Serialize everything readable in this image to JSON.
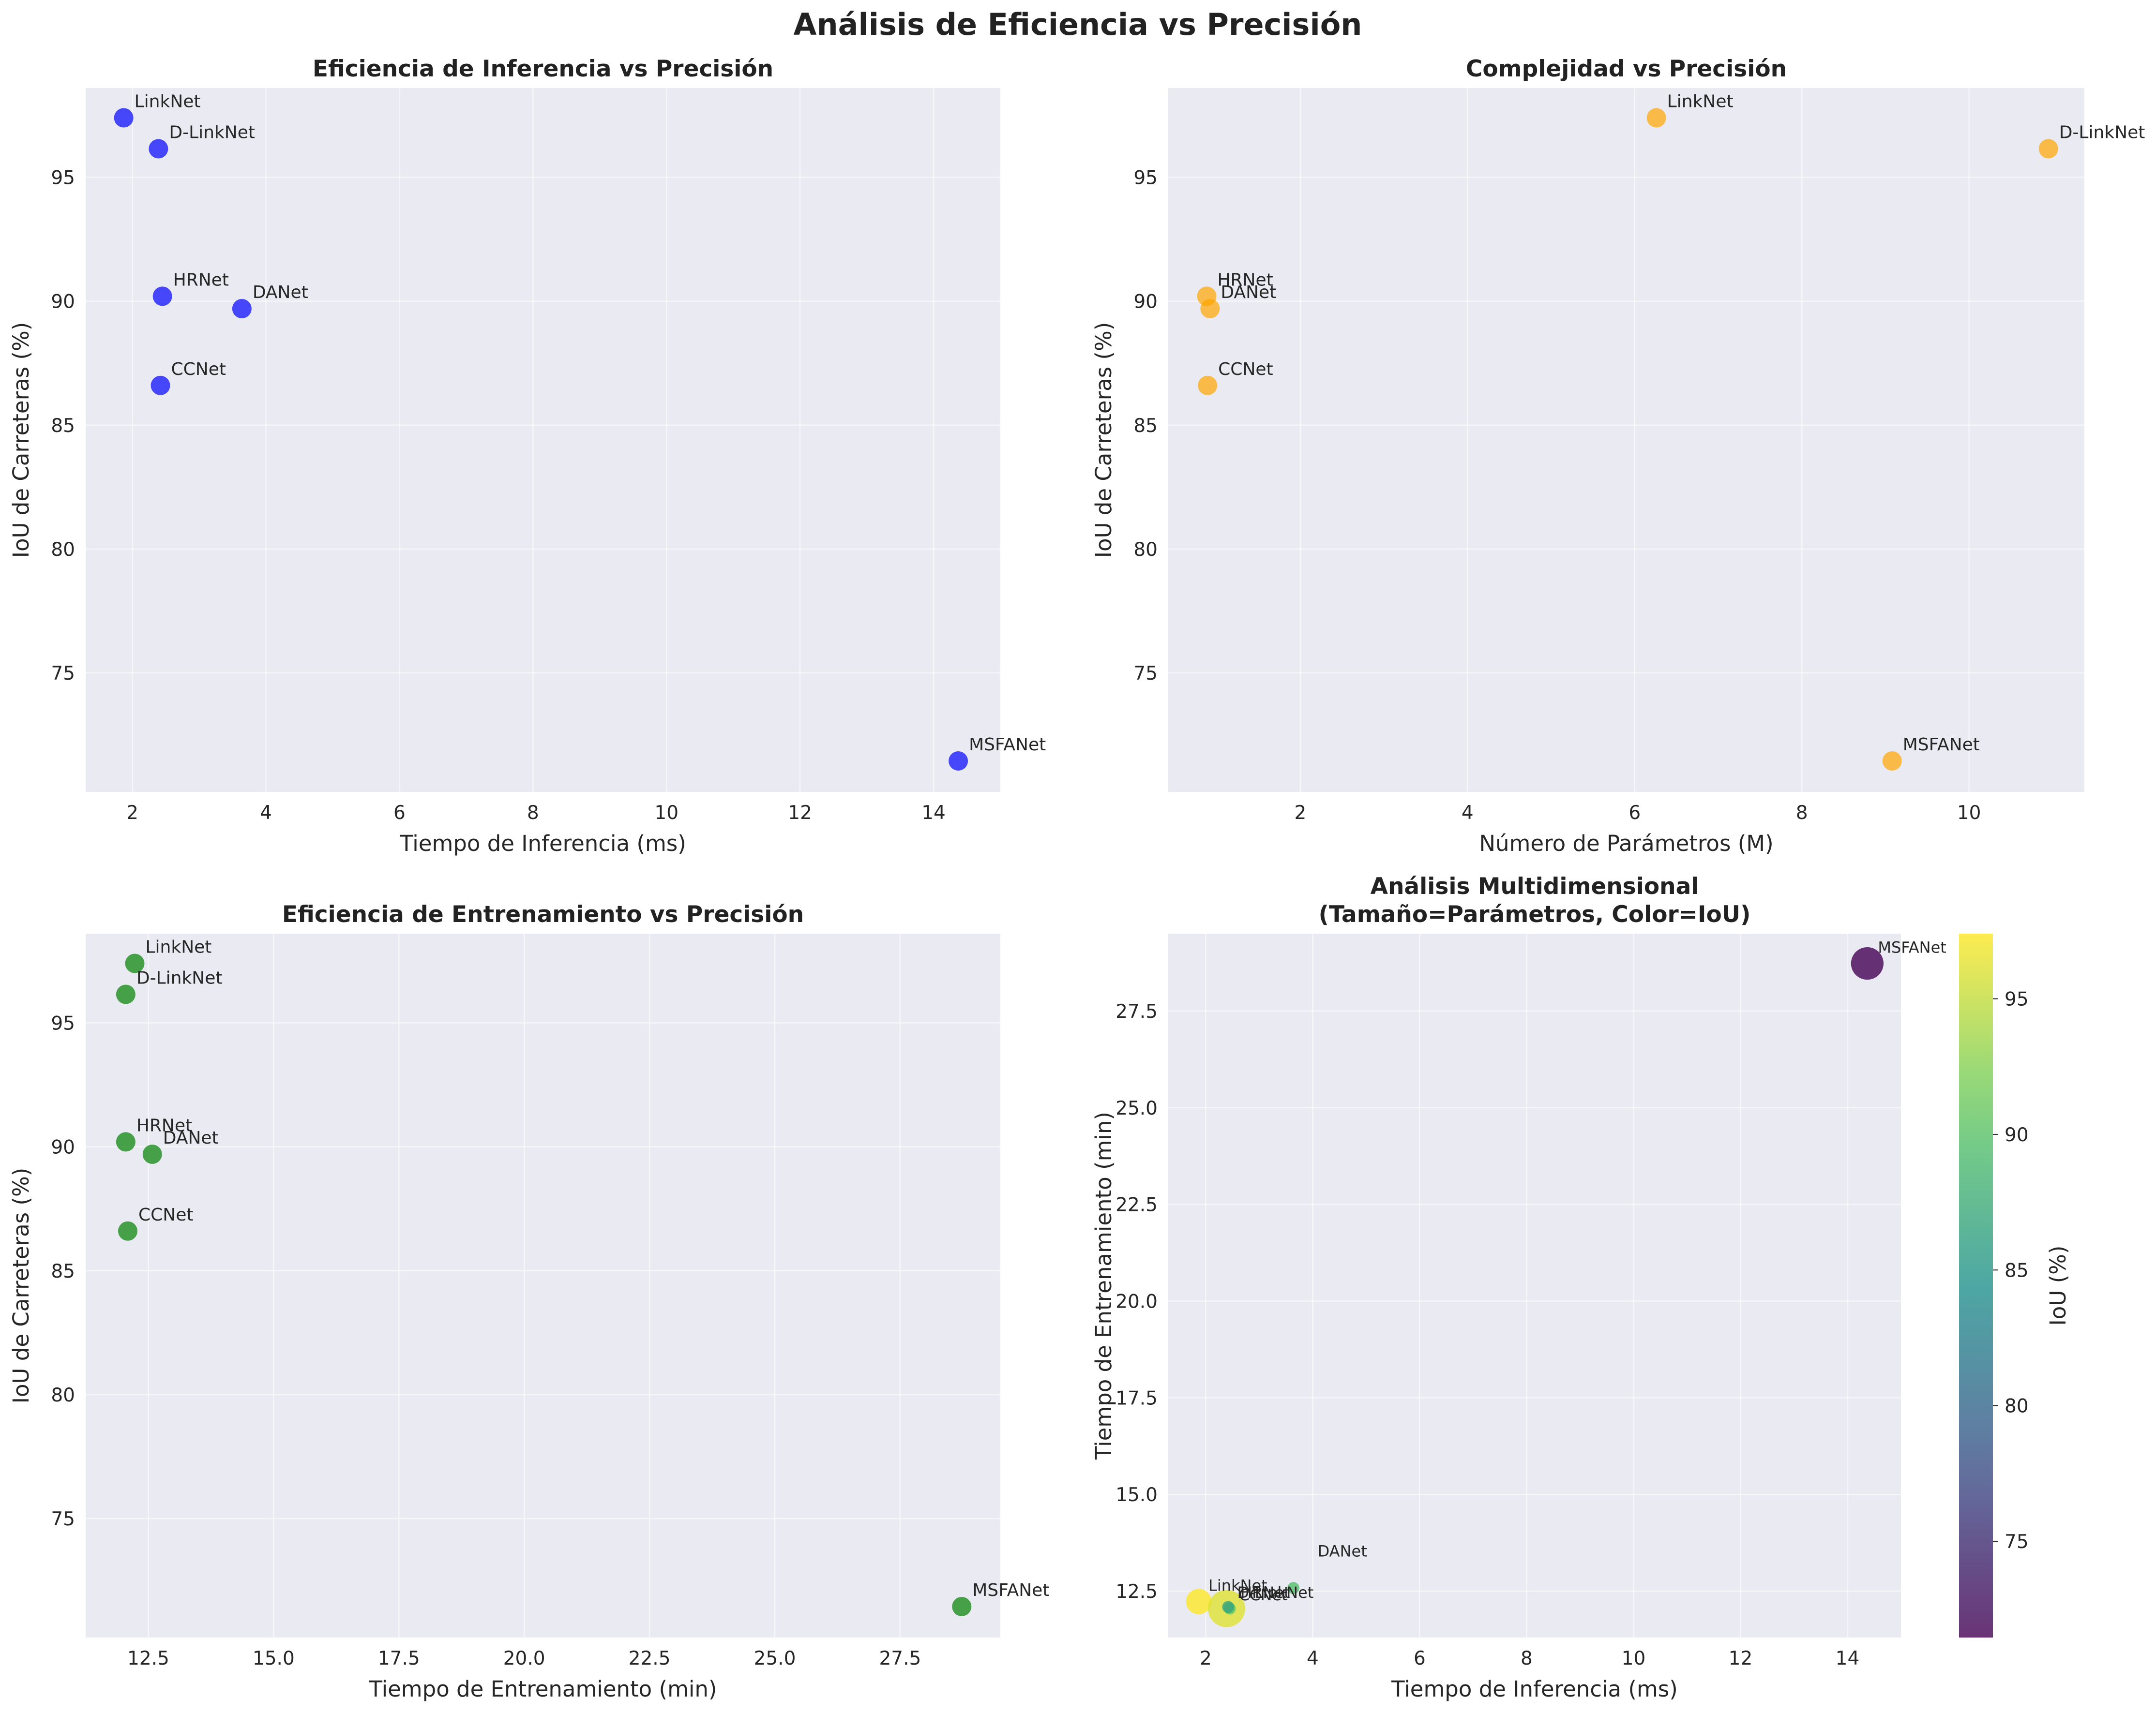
{
  "suptitle": "Análisis de Eficiencia vs Precisión",
  "colors": {
    "panel_bg": "#eaeaf2",
    "blue_points": "#0000ff",
    "orange_points": "#ffa500",
    "green_points": "#008000"
  },
  "chart_data": [
    {
      "type": "scatter",
      "title": "Eficiencia de Inferencia vs Precisión",
      "xlabel": "Tiempo de Inferencia (ms)",
      "ylabel": "IoU de Carreteras (%)",
      "xlim": [
        1.3,
        15.0
      ],
      "ylim": [
        70.2,
        98.6
      ],
      "xticks": [
        2,
        4,
        6,
        8,
        10,
        12,
        14
      ],
      "yticks": [
        75,
        80,
        85,
        90,
        95
      ],
      "grid": true,
      "color": "#0000ff",
      "points": [
        {
          "label": "LinkNet",
          "x": 1.87,
          "y": 97.4
        },
        {
          "label": "D-LinkNet",
          "x": 2.39,
          "y": 96.15
        },
        {
          "label": "HRNet",
          "x": 2.45,
          "y": 90.2
        },
        {
          "label": "DANet",
          "x": 3.64,
          "y": 89.7
        },
        {
          "label": "CCNet",
          "x": 2.42,
          "y": 86.6
        },
        {
          "label": "MSFANet",
          "x": 14.37,
          "y": 71.45
        }
      ]
    },
    {
      "type": "scatter",
      "title": "Complejidad vs Precisión",
      "xlabel": "Número de Parámetros (M)",
      "ylabel": "IoU de Carreteras (%)",
      "xlim": [
        0.42,
        11.38
      ],
      "ylim": [
        70.2,
        98.6
      ],
      "xticks": [
        2,
        4,
        6,
        8,
        10
      ],
      "yticks": [
        75,
        80,
        85,
        90,
        95
      ],
      "grid": true,
      "color": "#ffa500",
      "points": [
        {
          "label": "LinkNet",
          "x": 6.26,
          "y": 97.4
        },
        {
          "label": "D-LinkNet",
          "x": 10.95,
          "y": 96.15
        },
        {
          "label": "HRNet",
          "x": 0.88,
          "y": 90.2
        },
        {
          "label": "DANet",
          "x": 0.92,
          "y": 89.7
        },
        {
          "label": "CCNet",
          "x": 0.89,
          "y": 86.6
        },
        {
          "label": "MSFANet",
          "x": 9.08,
          "y": 71.45
        }
      ]
    },
    {
      "type": "scatter",
      "title": "Eficiencia de Entrenamiento vs Precisión",
      "xlabel": "Tiempo de Entrenamiento (min)",
      "ylabel": "IoU de Carreteras (%)",
      "xlim": [
        11.25,
        29.5
      ],
      "ylim": [
        70.2,
        98.6
      ],
      "xticks": [
        12.5,
        15.0,
        17.5,
        20.0,
        22.5,
        25.0,
        27.5
      ],
      "yticks": [
        75,
        80,
        85,
        90,
        95
      ],
      "grid": true,
      "color": "#008000",
      "points": [
        {
          "label": "LinkNet",
          "x": 12.23,
          "y": 97.4
        },
        {
          "label": "D-LinkNet",
          "x": 12.05,
          "y": 96.15
        },
        {
          "label": "HRNet",
          "x": 12.05,
          "y": 90.2
        },
        {
          "label": "DANet",
          "x": 12.58,
          "y": 89.7
        },
        {
          "label": "CCNet",
          "x": 12.09,
          "y": 86.6
        },
        {
          "label": "MSFANet",
          "x": 28.73,
          "y": 71.45
        }
      ]
    },
    {
      "type": "scatter",
      "title": "Análisis Multidimensional\n(Tamaño=Parámetros, Color=IoU)",
      "xlabel": "Tiempo de Inferencia (ms)",
      "ylabel": "Tiempo de Entrenamiento (min)",
      "xlim": [
        1.3,
        15.0
      ],
      "ylim": [
        11.3,
        29.5
      ],
      "xticks": [
        2,
        4,
        6,
        8,
        10,
        12,
        14
      ],
      "yticks": [
        12.5,
        15.0,
        17.5,
        20.0,
        22.5,
        25.0,
        27.5
      ],
      "grid": true,
      "size_encoding": "Parámetros",
      "color_encoding": "IoU",
      "colorbar": {
        "label": "IoU (%)",
        "min": 71.45,
        "max": 97.4,
        "ticks": [
          75,
          80,
          85,
          90,
          95
        ]
      },
      "points": [
        {
          "label": "LinkNet",
          "x": 1.87,
          "y": 12.23,
          "params": 6.26,
          "iou": 97.4
        },
        {
          "label": "D-LinkNet",
          "x": 2.39,
          "y": 12.05,
          "params": 10.95,
          "iou": 96.15
        },
        {
          "label": "HRNet",
          "x": 2.45,
          "y": 12.05,
          "params": 0.88,
          "iou": 90.2
        },
        {
          "label": "DANet",
          "x": 3.64,
          "y": 12.58,
          "params": 0.92,
          "iou": 89.7
        },
        {
          "label": "CCNet",
          "x": 2.42,
          "y": 12.09,
          "params": 0.89,
          "iou": 86.6
        },
        {
          "label": "MSFANet",
          "x": 14.37,
          "y": 28.73,
          "params": 9.08,
          "iou": 71.45
        }
      ]
    }
  ]
}
